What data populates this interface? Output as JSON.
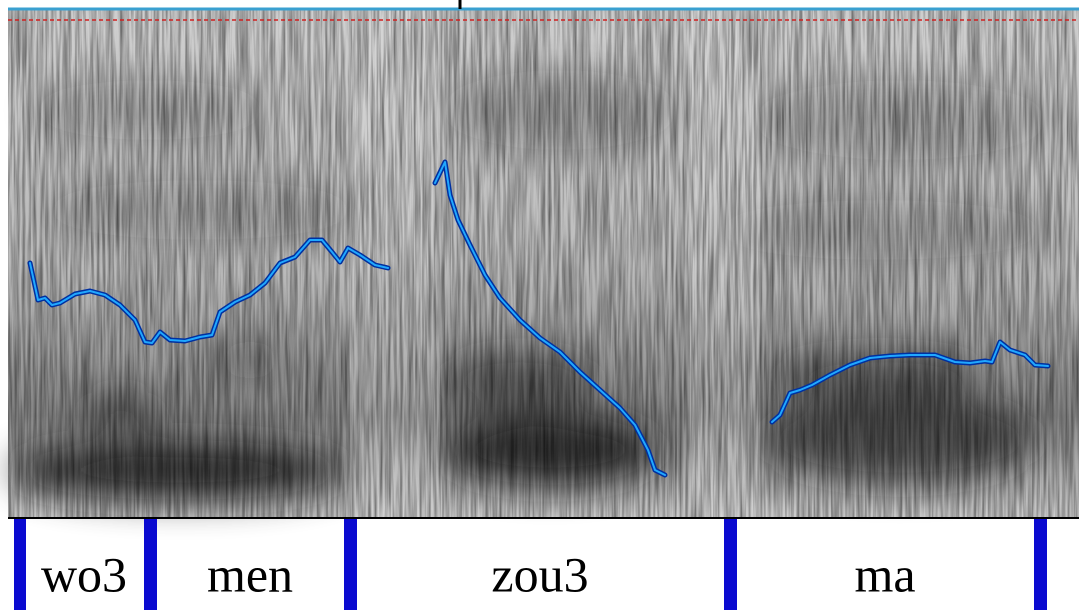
{
  "tier": {
    "intervals": [
      {
        "label": "wo3"
      },
      {
        "label": "men"
      },
      {
        "label": "zou3"
      },
      {
        "label": "ma"
      }
    ]
  }
}
